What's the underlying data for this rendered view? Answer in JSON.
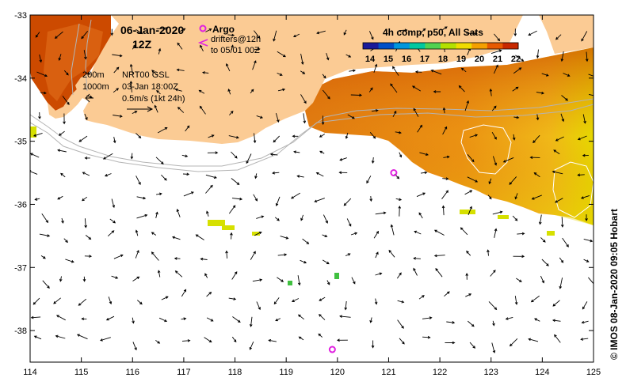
{
  "title": {
    "date": "06-Jan-2020",
    "time": "12Z"
  },
  "legend": {
    "argo_label": "Argo",
    "drifters_label": "drifters@12h",
    "drifters_to": "to 05/01 00Z",
    "colorbar_title": "4h comp, p50, All Sats",
    "colorbar_ticks": [
      "14",
      "15",
      "16",
      "17",
      "18",
      "19",
      "20",
      "21",
      "22"
    ],
    "colorbar_colors": [
      "#1a1a9a",
      "#0050c8",
      "#0096dc",
      "#00c8a0",
      "#50d250",
      "#b4e100",
      "#f0dc00",
      "#f5a000",
      "#e85a00",
      "#c82800"
    ]
  },
  "annotations": {
    "isobath_200": "200m",
    "isobath_1000": "1000m",
    "altimetry": "NRT00 GSL",
    "altimetry_date": "03-Jan 18:00Z",
    "current_scale": "0.5m/s (1kt 24h)"
  },
  "credit": "© IMOS 08-Jan-2020 09:05 Hobart",
  "axes": {
    "x_ticks": [
      "114",
      "115",
      "116",
      "117",
      "118",
      "119",
      "120",
      "121",
      "122",
      "123",
      "124",
      "125"
    ],
    "y_ticks": [
      "-33",
      "-34",
      "-35",
      "-36",
      "-37",
      "-38"
    ],
    "lon_range": [
      114,
      125
    ],
    "lat_range": [
      -38.5,
      -33
    ]
  },
  "colors": {
    "land": "#fbcb94",
    "warm_dark": "#cc4400",
    "warm_mid": "#e77a10",
    "warm_light": "#f0a818",
    "yellow": "#e6d800",
    "isobath": "#b4b4b4",
    "argo": "#e020e0"
  },
  "argo_floats": [
    {
      "lon": 121.1,
      "lat": -35.5
    },
    {
      "lon": 119.9,
      "lat": -38.3
    }
  ]
}
